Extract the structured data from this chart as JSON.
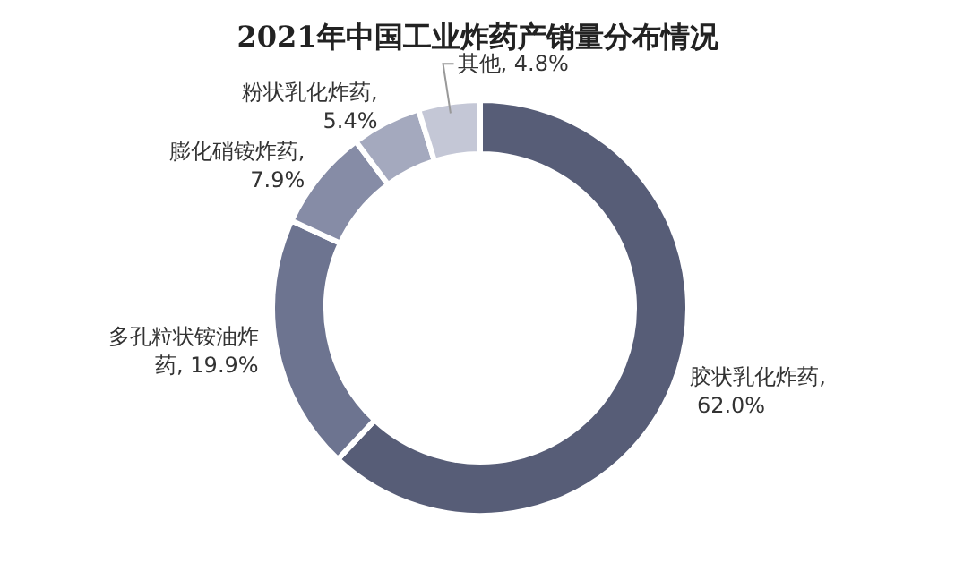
{
  "chart_data": {
    "type": "donut",
    "title": "2021年中国工业炸药产销量分布情况",
    "categories": [
      "胶状乳化炸药",
      "多孔粒状铵油炸药",
      "膨化硝铵炸药",
      "粉状乳化炸药",
      "其他"
    ],
    "values": [
      62.0,
      19.9,
      7.9,
      5.4,
      4.8
    ],
    "value_labels": [
      ", 62.0%",
      ", 19.9%",
      ", 7.9%",
      ", 5.4%",
      ", 4.8%"
    ],
    "colors": [
      "#575d77",
      "#6d7490",
      "#868ca6",
      "#a4a9be",
      "#c4c7d6"
    ],
    "legend": false
  }
}
